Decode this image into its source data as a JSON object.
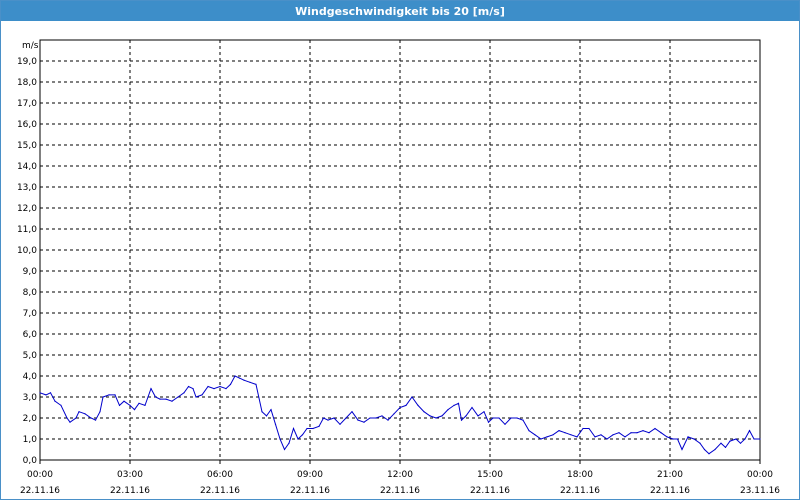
{
  "window": {
    "title": "Windgeschwindigkeit bis 20 [m/s]"
  },
  "colors": {
    "titlebar": "#3d8ec9",
    "series": "#0000cc",
    "grid": "#000000"
  },
  "chart_data": {
    "type": "line",
    "title": "Windgeschwindigkeit bis 20 [m/s]",
    "ylabel": "m/s",
    "ylim": [
      0,
      20
    ],
    "yticks": [
      "0,0",
      "1,0",
      "2,0",
      "3,0",
      "4,0",
      "5,0",
      "6,0",
      "7,0",
      "8,0",
      "9,0",
      "10,0",
      "11,0",
      "12,0",
      "13,0",
      "14,0",
      "15,0",
      "16,0",
      "17,0",
      "18,0",
      "19,0"
    ],
    "xlim_hours": [
      0,
      24
    ],
    "xticks": [
      {
        "hour": 0,
        "time": "00:00",
        "date": "22.11.16"
      },
      {
        "hour": 3,
        "time": "03:00",
        "date": "22.11.16"
      },
      {
        "hour": 6,
        "time": "06:00",
        "date": "22.11.16"
      },
      {
        "hour": 9,
        "time": "09:00",
        "date": "22.11.16"
      },
      {
        "hour": 12,
        "time": "12:00",
        "date": "22.11.16"
      },
      {
        "hour": 15,
        "time": "15:00",
        "date": "22.11.16"
      },
      {
        "hour": 18,
        "time": "18:00",
        "date": "22.11.16"
      },
      {
        "hour": 21,
        "time": "21:00",
        "date": "22.11.16"
      },
      {
        "hour": 24,
        "time": "00:00",
        "date": "23.11.16"
      }
    ],
    "grid": true,
    "series": [
      {
        "points": [
          [
            0.0,
            3.2
          ],
          [
            0.2,
            3.1
          ],
          [
            0.35,
            3.2
          ],
          [
            0.5,
            2.8
          ],
          [
            0.7,
            2.6
          ],
          [
            0.9,
            2.0
          ],
          [
            1.0,
            1.8
          ],
          [
            1.2,
            2.0
          ],
          [
            1.3,
            2.3
          ],
          [
            1.5,
            2.2
          ],
          [
            1.7,
            2.0
          ],
          [
            1.85,
            1.9
          ],
          [
            2.0,
            2.3
          ],
          [
            2.1,
            3.0
          ],
          [
            2.3,
            3.1
          ],
          [
            2.5,
            3.1
          ],
          [
            2.65,
            2.6
          ],
          [
            2.8,
            2.8
          ],
          [
            3.0,
            2.6
          ],
          [
            3.15,
            2.4
          ],
          [
            3.3,
            2.7
          ],
          [
            3.5,
            2.6
          ],
          [
            3.6,
            3.0
          ],
          [
            3.7,
            3.4
          ],
          [
            3.85,
            3.0
          ],
          [
            4.0,
            2.9
          ],
          [
            4.2,
            2.9
          ],
          [
            4.4,
            2.8
          ],
          [
            4.6,
            3.0
          ],
          [
            4.8,
            3.2
          ],
          [
            4.95,
            3.5
          ],
          [
            5.1,
            3.4
          ],
          [
            5.2,
            3.0
          ],
          [
            5.4,
            3.1
          ],
          [
            5.6,
            3.5
          ],
          [
            5.8,
            3.4
          ],
          [
            6.0,
            3.5
          ],
          [
            6.2,
            3.4
          ],
          [
            6.35,
            3.6
          ],
          [
            6.5,
            4.0
          ],
          [
            6.65,
            3.9
          ],
          [
            6.8,
            3.8
          ],
          [
            7.0,
            3.7
          ],
          [
            7.2,
            3.6
          ],
          [
            7.4,
            2.3
          ],
          [
            7.55,
            2.1
          ],
          [
            7.7,
            2.4
          ],
          [
            7.85,
            1.7
          ],
          [
            8.0,
            1.0
          ],
          [
            8.15,
            0.5
          ],
          [
            8.3,
            0.8
          ],
          [
            8.45,
            1.5
          ],
          [
            8.6,
            1.0
          ],
          [
            8.75,
            1.2
          ],
          [
            8.9,
            1.5
          ],
          [
            9.1,
            1.5
          ],
          [
            9.3,
            1.6
          ],
          [
            9.45,
            2.0
          ],
          [
            9.6,
            1.9
          ],
          [
            9.8,
            2.0
          ],
          [
            10.0,
            1.7
          ],
          [
            10.2,
            2.0
          ],
          [
            10.4,
            2.3
          ],
          [
            10.6,
            1.9
          ],
          [
            10.8,
            1.8
          ],
          [
            11.0,
            2.0
          ],
          [
            11.2,
            2.0
          ],
          [
            11.4,
            2.1
          ],
          [
            11.6,
            1.9
          ],
          [
            11.8,
            2.2
          ],
          [
            12.0,
            2.5
          ],
          [
            12.2,
            2.6
          ],
          [
            12.4,
            3.0
          ],
          [
            12.6,
            2.6
          ],
          [
            12.8,
            2.3
          ],
          [
            13.0,
            2.1
          ],
          [
            13.2,
            2.0
          ],
          [
            13.4,
            2.1
          ],
          [
            13.6,
            2.4
          ],
          [
            13.8,
            2.6
          ],
          [
            13.95,
            2.7
          ],
          [
            14.05,
            1.9
          ],
          [
            14.2,
            2.1
          ],
          [
            14.4,
            2.5
          ],
          [
            14.6,
            2.1
          ],
          [
            14.8,
            2.3
          ],
          [
            14.95,
            1.8
          ],
          [
            15.1,
            2.0
          ],
          [
            15.3,
            2.0
          ],
          [
            15.5,
            1.7
          ],
          [
            15.7,
            2.0
          ],
          [
            15.9,
            2.0
          ],
          [
            16.1,
            1.9
          ],
          [
            16.3,
            1.4
          ],
          [
            16.5,
            1.2
          ],
          [
            16.7,
            1.0
          ],
          [
            16.9,
            1.1
          ],
          [
            17.1,
            1.2
          ],
          [
            17.3,
            1.4
          ],
          [
            17.5,
            1.3
          ],
          [
            17.7,
            1.2
          ],
          [
            17.9,
            1.1
          ],
          [
            18.1,
            1.5
          ],
          [
            18.3,
            1.5
          ],
          [
            18.5,
            1.1
          ],
          [
            18.7,
            1.2
          ],
          [
            18.9,
            1.0
          ],
          [
            19.1,
            1.2
          ],
          [
            19.3,
            1.3
          ],
          [
            19.5,
            1.1
          ],
          [
            19.7,
            1.3
          ],
          [
            19.9,
            1.3
          ],
          [
            20.1,
            1.4
          ],
          [
            20.3,
            1.3
          ],
          [
            20.5,
            1.5
          ],
          [
            20.7,
            1.3
          ],
          [
            20.9,
            1.1
          ],
          [
            21.1,
            1.0
          ],
          [
            21.25,
            1.0
          ],
          [
            21.4,
            0.5
          ],
          [
            21.6,
            1.1
          ],
          [
            21.8,
            1.0
          ],
          [
            22.0,
            0.8
          ],
          [
            22.15,
            0.5
          ],
          [
            22.3,
            0.3
          ],
          [
            22.5,
            0.5
          ],
          [
            22.7,
            0.8
          ],
          [
            22.85,
            0.6
          ],
          [
            23.0,
            0.9
          ],
          [
            23.2,
            1.0
          ],
          [
            23.35,
            0.8
          ],
          [
            23.5,
            1.0
          ],
          [
            23.65,
            1.4
          ],
          [
            23.8,
            1.0
          ],
          [
            24.0,
            1.0
          ]
        ]
      }
    ]
  }
}
